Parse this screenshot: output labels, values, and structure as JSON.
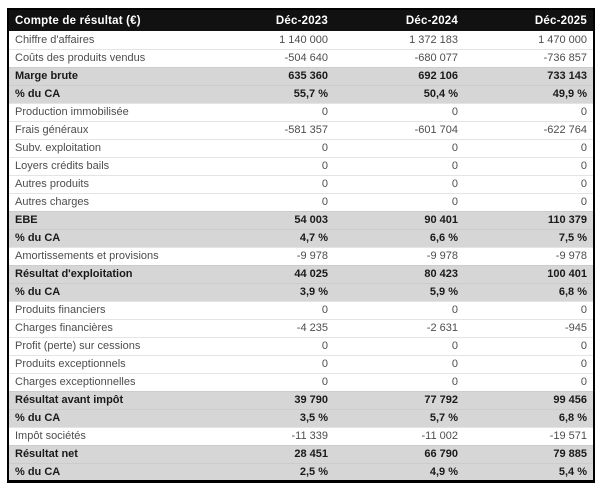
{
  "table": {
    "title": "Compte de résultat (€)",
    "columns": [
      "Déc-2023",
      "Déc-2024",
      "Déc-2025"
    ],
    "rows": [
      {
        "label": "Chiffre d'affaires",
        "values": [
          "1 140 000",
          "1 372 183",
          "1 470 000"
        ],
        "emphasis": false
      },
      {
        "label": "Coûts des produits vendus",
        "values": [
          "-504 640",
          "-680 077",
          "-736 857"
        ],
        "emphasis": false
      },
      {
        "label": "Marge brute",
        "values": [
          "635 360",
          "692 106",
          "733 143"
        ],
        "emphasis": true
      },
      {
        "label": "% du CA",
        "values": [
          "55,7 %",
          "50,4 %",
          "49,9 %"
        ],
        "emphasis": true
      },
      {
        "label": "Production immobilisée",
        "values": [
          "0",
          "0",
          "0"
        ],
        "emphasis": false
      },
      {
        "label": "Frais généraux",
        "values": [
          "-581 357",
          "-601 704",
          "-622 764"
        ],
        "emphasis": false
      },
      {
        "label": "Subv. exploitation",
        "values": [
          "0",
          "0",
          "0"
        ],
        "emphasis": false
      },
      {
        "label": "Loyers crédits bails",
        "values": [
          "0",
          "0",
          "0"
        ],
        "emphasis": false
      },
      {
        "label": "Autres produits",
        "values": [
          "0",
          "0",
          "0"
        ],
        "emphasis": false
      },
      {
        "label": "Autres charges",
        "values": [
          "0",
          "0",
          "0"
        ],
        "emphasis": false
      },
      {
        "label": "EBE",
        "values": [
          "54 003",
          "90 401",
          "110 379"
        ],
        "emphasis": true
      },
      {
        "label": "% du CA",
        "values": [
          "4,7 %",
          "6,6 %",
          "7,5 %"
        ],
        "emphasis": true
      },
      {
        "label": "Amortissements et provisions",
        "values": [
          "-9 978",
          "-9 978",
          "-9 978"
        ],
        "emphasis": false
      },
      {
        "label": "Résultat d'exploitation",
        "values": [
          "44 025",
          "80 423",
          "100 401"
        ],
        "emphasis": true
      },
      {
        "label": "% du CA",
        "values": [
          "3,9 %",
          "5,9 %",
          "6,8 %"
        ],
        "emphasis": true
      },
      {
        "label": "Produits financiers",
        "values": [
          "0",
          "0",
          "0"
        ],
        "emphasis": false
      },
      {
        "label": "Charges financières",
        "values": [
          "-4 235",
          "-2 631",
          "-945"
        ],
        "emphasis": false
      },
      {
        "label": "Profit (perte) sur cessions",
        "values": [
          "0",
          "0",
          "0"
        ],
        "emphasis": false
      },
      {
        "label": "Produits exceptionnels",
        "values": [
          "0",
          "0",
          "0"
        ],
        "emphasis": false
      },
      {
        "label": "Charges exceptionnelles",
        "values": [
          "0",
          "0",
          "0"
        ],
        "emphasis": false
      },
      {
        "label": "Résultat avant impôt",
        "values": [
          "39 790",
          "77 792",
          "99 456"
        ],
        "emphasis": true
      },
      {
        "label": "% du CA",
        "values": [
          "3,5 %",
          "5,7 %",
          "6,8 %"
        ],
        "emphasis": true
      },
      {
        "label": "Impôt sociétés",
        "values": [
          "-11 339",
          "-11 002",
          "-19 571"
        ],
        "emphasis": false
      },
      {
        "label": "Résultat net",
        "values": [
          "28 451",
          "66 790",
          "79 885"
        ],
        "emphasis": true
      },
      {
        "label": "% du CA",
        "values": [
          "2,5 %",
          "4,9 %",
          "5,4 %"
        ],
        "emphasis": true
      }
    ]
  },
  "colors": {
    "header_bg": "#111111",
    "header_text": "#ffffff",
    "emphasis_bg": "#d6d6d6",
    "body_text": "#4d4d4d",
    "emphasis_text": "#1a1a1a",
    "border": "#000000"
  }
}
